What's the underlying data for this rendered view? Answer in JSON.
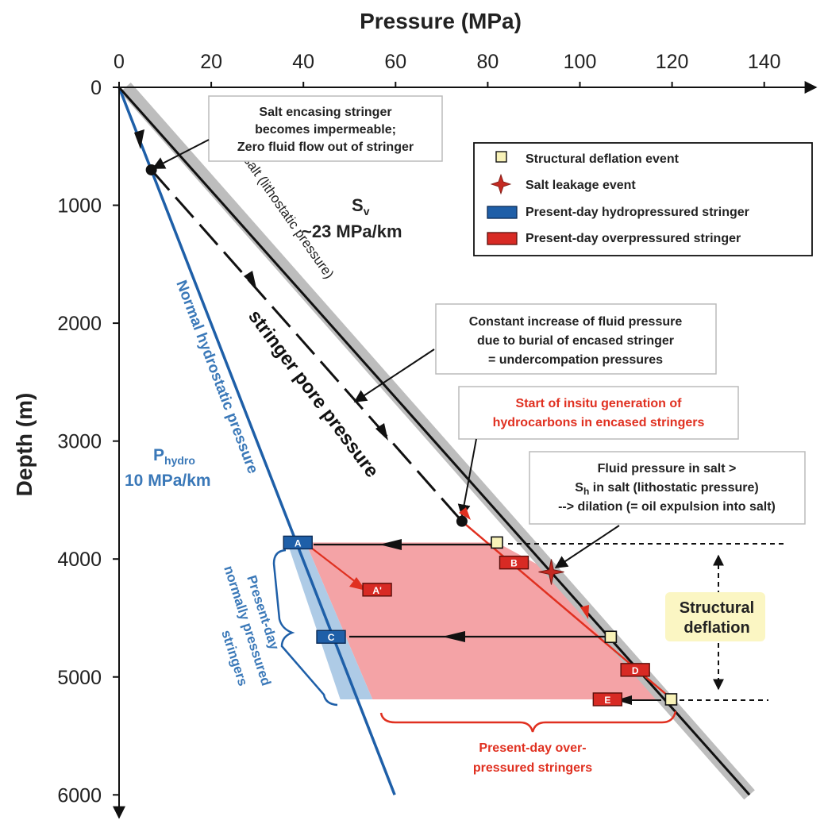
{
  "chart_data": {
    "type": "line",
    "title": "Pressure (MPa)",
    "xlabel": "Pressure (MPa)",
    "ylabel": "Depth (m)",
    "xlim": [
      0,
      140
    ],
    "ylim": [
      0,
      6000
    ],
    "x_ticks": [
      "0",
      "20",
      "40",
      "60",
      "80",
      "100",
      "120",
      "140"
    ],
    "y_ticks": [
      "0",
      "1000",
      "2000",
      "3000",
      "4000",
      "5000",
      "6000"
    ],
    "series": [
      {
        "name": "Normal hydrostatic pressure",
        "color": "#1e5fa8",
        "points": [
          [
            0,
            0
          ],
          [
            59.8,
            6000
          ]
        ]
      },
      {
        "name": "Sh in salt (lithostatic pressure)",
        "color": "#111111",
        "points": [
          [
            0,
            0
          ],
          [
            136.8,
            6000
          ]
        ]
      },
      {
        "name": "stringer pore pressure",
        "color": "#111111",
        "style": "dashed",
        "points": [
          [
            7.0,
            700
          ],
          [
            74.4,
            3680
          ]
        ]
      },
      {
        "name": "",
        "color": "#e03020",
        "points": [
          [
            74.4,
            3680
          ],
          [
            120.0,
            5190
          ]
        ]
      }
    ],
    "points": {
      "transition": [
        7.0,
        700
      ],
      "generation_start": [
        74.4,
        3680
      ],
      "salt_leakage_event": [
        93.8,
        4110
      ]
    },
    "deflation_events": [
      [
        82.0,
        3860
      ],
      [
        106.7,
        4660
      ],
      [
        119.8,
        5190
      ]
    ],
    "stringers": [
      {
        "label": "A",
        "type": "hydropressured",
        "pressure": 38.8,
        "depth": 3860
      },
      {
        "label": "A'",
        "type": "overpressured",
        "pressure": 56.0,
        "depth": 4260
      },
      {
        "label": "B",
        "type": "overpressured",
        "pressure": 85.7,
        "depth": 4030
      },
      {
        "label": "C",
        "type": "hydropressured",
        "pressure": 46.0,
        "depth": 4660
      },
      {
        "label": "D",
        "type": "overpressured",
        "pressure": 112.0,
        "depth": 4940
      },
      {
        "label": "E",
        "type": "overpressured",
        "pressure": 106.0,
        "depth": 5190
      }
    ],
    "annotations": {
      "sv_label": "S",
      "sv_sub": "v",
      "sv_gradient": "~23 MPa/km",
      "hydro_label": "P",
      "hydro_sub": "hydro",
      "hydro_gradient": "10 MPa/km",
      "sh_line_label_s": "S",
      "sh_line_label_sub": "h",
      "sh_line_label_rest": " in salt (lithostatic pressure)",
      "hydro_line_label": "Normal hydrostatic pressure",
      "pore_label": "stringer pore pressure",
      "box1": [
        "Salt encasing stringer",
        "becomes impermeable;",
        "Zero fluid flow out of stringer"
      ],
      "box2": [
        "Constant increase of fluid pressure",
        "due to burial of encased stringer",
        "= undercompation pressures"
      ],
      "box3": [
        "Start of insitu generation of",
        "hydrocarbons  in encased stringers"
      ],
      "box4_line1": "Fluid pressure in salt >",
      "box4_line2_s": "S",
      "box4_line2_sub": "h",
      "box4_line2_rest": " in salt (lithostatic pressure)",
      "box4_line3": "--> dilation (= oil expulsion into salt)",
      "structural_deflation": [
        "Structural",
        "deflation"
      ],
      "present_normal": [
        "Present-day",
        "normally pressured",
        "stringers"
      ],
      "present_over": [
        "Present-day over-",
        "pressured stringers"
      ]
    },
    "legend": {
      "placement": "top-right",
      "items": [
        {
          "marker": "square",
          "label": "Structural deflation event",
          "color": "#f8f2b8"
        },
        {
          "marker": "star",
          "label": "Salt leakage event",
          "color": "#c42a22"
        },
        {
          "marker": "blue-box",
          "label": "Present-day hydropressured stringer",
          "color": "#1f5fa8"
        },
        {
          "marker": "red-box",
          "label": "Present-day overpressured stringer",
          "color": "#d82a24"
        }
      ]
    }
  }
}
